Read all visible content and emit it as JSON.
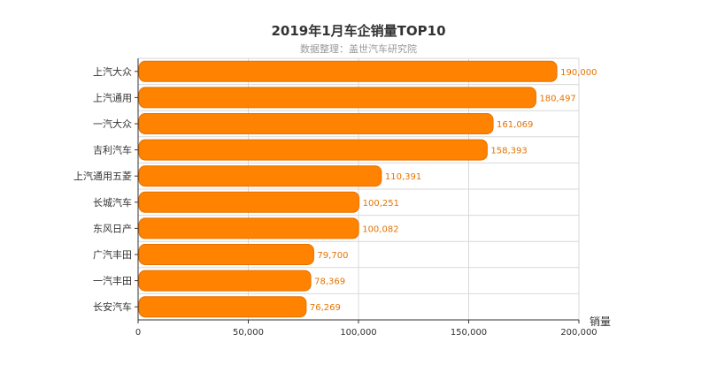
{
  "chart_data": {
    "type": "bar",
    "orientation": "horizontal",
    "title": "2019年1月车企销量TOP10",
    "subtitle": "数据整理：盖世汽车研究院",
    "categories": [
      "上汽大众",
      "上汽通用",
      "一汽大众",
      "吉利汽车",
      "上汽通用五菱",
      "长城汽车",
      "东风日产",
      "广汽丰田",
      "一汽丰田",
      "长安汽车"
    ],
    "values": [
      190000,
      180497,
      161069,
      158393,
      110391,
      100251,
      100082,
      79700,
      78369,
      76269
    ],
    "value_labels": [
      "190,000",
      "180,497",
      "161,069",
      "158,393",
      "110,391",
      "100,251",
      "100,082",
      "79,700",
      "78,369",
      "76,269"
    ],
    "xlabel": "销量",
    "xlim": [
      0,
      200000
    ],
    "x_ticks": [
      0,
      50000,
      100000,
      150000,
      200000
    ],
    "x_tick_labels": [
      "0",
      "50,000",
      "100,000",
      "150,000",
      "200,000"
    ],
    "grid": true,
    "legend": "none",
    "colors": {
      "bar": "#ff8200",
      "bar_stroke": "#e67300",
      "label": "#e67300",
      "grid": "#d9d9d9",
      "axis": "#333333"
    }
  }
}
